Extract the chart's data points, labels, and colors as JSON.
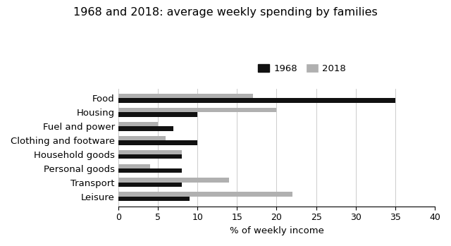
{
  "title": "1968 and 2018: average weekly spending by families",
  "categories": [
    "Food",
    "Housing",
    "Fuel and power",
    "Clothing and footware",
    "Household goods",
    "Personal goods",
    "Transport",
    "Leisure"
  ],
  "values_1968": [
    35,
    10,
    7,
    10,
    8,
    8,
    8,
    9
  ],
  "values_2018": [
    17,
    20,
    5,
    6,
    8,
    4,
    14,
    22
  ],
  "color_1968": "#111111",
  "color_2018": "#b0b0b0",
  "xlabel": "% of weekly income",
  "xlim": [
    0,
    40
  ],
  "xticks": [
    0,
    5,
    10,
    15,
    20,
    25,
    30,
    35,
    40
  ],
  "legend_labels": [
    "1968",
    "2018"
  ],
  "bar_height": 0.32,
  "background_color": "#ffffff",
  "title_fontsize": 11.5,
  "label_fontsize": 9.5,
  "tick_fontsize": 9
}
